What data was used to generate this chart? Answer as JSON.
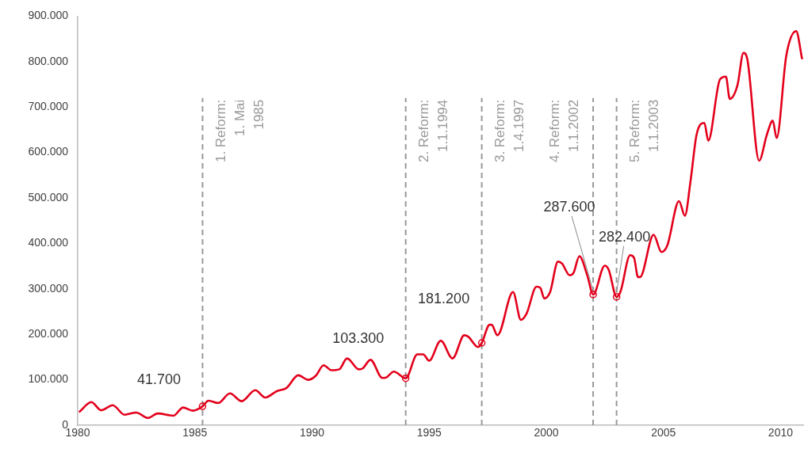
{
  "chart_data": {
    "type": "line",
    "x": [
      "1980-02",
      "1980-08",
      "1981-01",
      "1981-07",
      "1982-01",
      "1982-07",
      "1983-01",
      "1983-06",
      "1984-02",
      "1984-07",
      "1984-12",
      "1985-05",
      "1985-08",
      "1986-01",
      "1986-07",
      "1987-01",
      "1987-08",
      "1988-01",
      "1988-07",
      "1988-12",
      "1989-06",
      "1989-11",
      "1990-03",
      "1990-07",
      "1990-11",
      "1991-03",
      "1991-07",
      "1992-01",
      "1992-03",
      "1992-07",
      "1993-01",
      "1993-03",
      "1993-07",
      "1994-01",
      "1994-07",
      "1994-10",
      "1995-01",
      "1995-07",
      "1996-01",
      "1996-07",
      "1996-09",
      "1997-02",
      "1997-04",
      "1997-08",
      "1997-09",
      "1997-12",
      "1998-08",
      "1998-12",
      "1999-03",
      "1999-08",
      "1999-10",
      "1999-12",
      "2000-03",
      "2000-07",
      "2000-09",
      "2001-01",
      "2001-03",
      "2001-06",
      "2001-10",
      "2002-01",
      "2002-07",
      "2002-09",
      "2003-01",
      "2003-03",
      "2003-08",
      "2003-10",
      "2003-12",
      "2004-01",
      "2004-08",
      "2004-12",
      "2005-03",
      "2005-09",
      "2005-12",
      "2006-03",
      "2006-06",
      "2006-10",
      "2006-12",
      "2007-06",
      "2007-09",
      "2007-11",
      "2008-03",
      "2008-06",
      "2008-08",
      "2009-02",
      "2009-06",
      "2009-09",
      "2009-11",
      "2010-04",
      "2010-09",
      "2010-12"
    ],
    "series": [
      {
        "color": "#e3001b",
        "values": [
          30000,
          51000,
          33000,
          44000,
          23000,
          28000,
          16000,
          26000,
          21000,
          39000,
          32000,
          41700,
          54000,
          49000,
          70000,
          53000,
          77000,
          61000,
          75000,
          82000,
          110000,
          100000,
          109000,
          132000,
          121000,
          123000,
          147000,
          123000,
          125000,
          144000,
          104000,
          105000,
          118000,
          103300,
          156000,
          156000,
          142000,
          186000,
          147000,
          198000,
          195000,
          172000,
          181200,
          221000,
          221000,
          198000,
          293000,
          232000,
          246000,
          305000,
          302000,
          279000,
          293000,
          360000,
          356000,
          330000,
          335000,
          372000,
          330000,
          287600,
          351000,
          342000,
          282400,
          293000,
          374000,
          368000,
          326000,
          326000,
          419000,
          381000,
          395000,
          493000,
          461000,
          539000,
          639000,
          665000,
          626000,
          761000,
          767000,
          718000,
          749000,
          819000,
          805000,
          582000,
          639000,
          670000,
          632000,
          814000,
          867000,
          807000
        ]
      }
    ],
    "xlim": [
      "1980",
      "2011"
    ],
    "xticks": [
      "1980",
      "1985",
      "1990",
      "1995",
      "2000",
      "2005",
      "2010"
    ],
    "ylim": [
      0,
      900000
    ],
    "yticks": [
      {
        "value": 0,
        "label": "0"
      },
      {
        "value": 100000,
        "label": "100.000"
      },
      {
        "value": 200000,
        "label": "200.000"
      },
      {
        "value": 300000,
        "label": "300.000"
      },
      {
        "value": 400000,
        "label": "400.000"
      },
      {
        "value": 500000,
        "label": "500.000"
      },
      {
        "value": 600000,
        "label": "600.000"
      },
      {
        "value": 700000,
        "label": "700.000"
      },
      {
        "value": 800000,
        "label": "800.000"
      },
      {
        "value": 900000,
        "label": "900.000"
      }
    ],
    "grid": false,
    "legend": false,
    "marker": "none",
    "line_style": "solid",
    "ref_lines": [
      {
        "axis": "x",
        "value": "1985-05-01",
        "label": "1. Reform:\n1. Mai\n1985",
        "color": "#999999",
        "line_style": "dashed"
      },
      {
        "axis": "x",
        "value": "1994-01-01",
        "label": "2. Reform:\n1.1.1994",
        "color": "#999999",
        "line_style": "dashed"
      },
      {
        "axis": "x",
        "value": "1997-04-01",
        "label": "3. Reform:\n1.4.1997",
        "color": "#999999",
        "line_style": "dashed"
      },
      {
        "axis": "x",
        "value": "2002-01-01",
        "label": "4. Reform:\n1.1.2002",
        "color": "#999999",
        "line_style": "dashed"
      },
      {
        "axis": "x",
        "value": "2003-01-01",
        "label": "5. Reform:\n1.1.2003",
        "color": "#999999",
        "line_style": "dashed"
      }
    ],
    "annotations": [
      {
        "text": "41.700",
        "x": "1985-05",
        "y": 41700
      },
      {
        "text": "103.300",
        "x": "1994-01",
        "y": 103300
      },
      {
        "text": "181.200",
        "x": "1997-04",
        "y": 181200
      },
      {
        "text": "287.600",
        "x": "2002-01",
        "y": 287600
      },
      {
        "text": "282.400",
        "x": "2003-01",
        "y": 282400
      }
    ]
  }
}
